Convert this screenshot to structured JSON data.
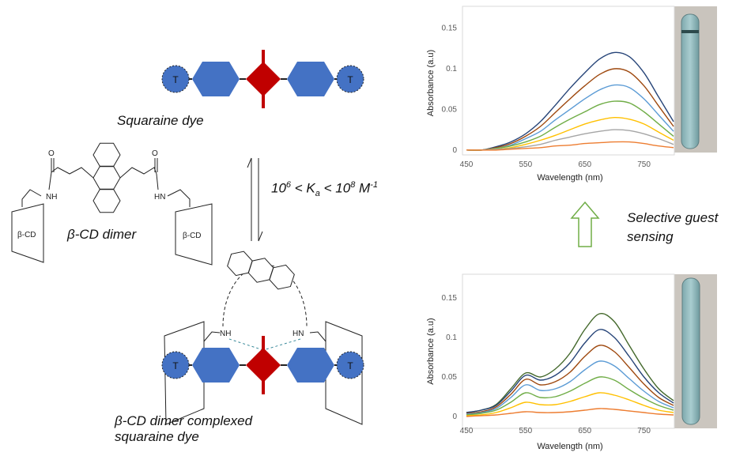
{
  "diagram": {
    "dye_label": "Squaraine dye",
    "terminal_label": "T",
    "dimer_label": "β-CD dimer",
    "cd_label": "β-CD",
    "oxygen_label": "O",
    "amide_nh_label": "NH",
    "amide_hn_label": "HN",
    "complex_label": [
      "β-CD dimer complexed",
      "squaraine dye"
    ],
    "binding_constant": [
      {
        "text": "10"
      },
      {
        "text": "6",
        "style": "sup"
      },
      {
        "text": " < K"
      },
      {
        "text": "a",
        "style": "sub"
      },
      {
        "text": " < 10"
      },
      {
        "text": "8",
        "style": "sup"
      },
      {
        "text": " M"
      },
      {
        "text": "-1",
        "style": "sup"
      }
    ],
    "arrow_label": [
      "Selective guest",
      "sensing"
    ]
  },
  "chart_data": [
    {
      "type": "line",
      "xlabel": "Wavelength (nm)",
      "ylabel": "Absorbance (a.u)",
      "x": [
        450,
        475,
        500,
        525,
        550,
        575,
        600,
        625,
        650,
        675,
        700,
        725,
        750,
        775,
        800
      ],
      "xlim": [
        450,
        800
      ],
      "xticks": [
        450,
        550,
        650,
        750
      ],
      "ylim": [
        -0.005,
        0.17
      ],
      "yticks": [
        0,
        0.05,
        0.1,
        0.15
      ],
      "series": [
        {
          "color": "#264478",
          "values": [
            0,
            0,
            0.004,
            0.01,
            0.02,
            0.035,
            0.055,
            0.076,
            0.095,
            0.112,
            0.12,
            0.115,
            0.095,
            0.065,
            0.035
          ]
        },
        {
          "color": "#9e480e",
          "values": [
            0,
            0,
            0.003,
            0.008,
            0.017,
            0.029,
            0.046,
            0.063,
            0.079,
            0.093,
            0.1,
            0.096,
            0.079,
            0.054,
            0.029
          ]
        },
        {
          "color": "#5b9bd5",
          "values": [
            0,
            0,
            0.002,
            0.006,
            0.014,
            0.023,
            0.037,
            0.05,
            0.063,
            0.074,
            0.08,
            0.077,
            0.063,
            0.043,
            0.023
          ]
        },
        {
          "color": "#70ad47",
          "values": [
            0,
            0,
            0.002,
            0.005,
            0.01,
            0.017,
            0.028,
            0.038,
            0.047,
            0.056,
            0.06,
            0.058,
            0.047,
            0.032,
            0.017
          ]
        },
        {
          "color": "#ffc000",
          "values": [
            0,
            0,
            0.001,
            0.003,
            0.007,
            0.012,
            0.018,
            0.025,
            0.032,
            0.037,
            0.04,
            0.038,
            0.032,
            0.022,
            0.012
          ]
        },
        {
          "color": "#a5a5a5",
          "values": [
            0,
            0,
            0.001,
            0.002,
            0.004,
            0.007,
            0.012,
            0.016,
            0.02,
            0.023,
            0.025,
            0.024,
            0.02,
            0.014,
            0.007
          ]
        },
        {
          "color": "#ed7d31",
          "values": [
            0,
            0,
            0,
            0.001,
            0.002,
            0.003,
            0.005,
            0.006,
            0.008,
            0.009,
            0.01,
            0.01,
            0.008,
            0.005,
            0.003
          ]
        }
      ]
    },
    {
      "type": "line",
      "xlabel": "Wavelength (nm)",
      "ylabel": "Absorbance (a.u)",
      "x": [
        450,
        475,
        500,
        525,
        550,
        575,
        600,
        625,
        650,
        675,
        700,
        725,
        750,
        775,
        800
      ],
      "xlim": [
        450,
        800
      ],
      "xticks": [
        450,
        550,
        650,
        750
      ],
      "ylim": [
        -0.005,
        0.17
      ],
      "yticks": [
        0,
        0.05,
        0.1,
        0.15
      ],
      "series": [
        {
          "color": "#43682b",
          "values": [
            0.005,
            0.008,
            0.015,
            0.035,
            0.055,
            0.05,
            0.06,
            0.08,
            0.11,
            0.13,
            0.12,
            0.09,
            0.06,
            0.035,
            0.02
          ]
        },
        {
          "color": "#264478",
          "values": [
            0.005,
            0.008,
            0.014,
            0.032,
            0.052,
            0.046,
            0.052,
            0.068,
            0.093,
            0.11,
            0.1,
            0.076,
            0.05,
            0.03,
            0.017
          ]
        },
        {
          "color": "#9e480e",
          "values": [
            0.004,
            0.006,
            0.012,
            0.028,
            0.047,
            0.04,
            0.044,
            0.056,
            0.076,
            0.09,
            0.082,
            0.062,
            0.041,
            0.024,
            0.014
          ]
        },
        {
          "color": "#5b9bd5",
          "values": [
            0.003,
            0.005,
            0.01,
            0.024,
            0.04,
            0.033,
            0.035,
            0.044,
            0.059,
            0.07,
            0.064,
            0.048,
            0.032,
            0.019,
            0.011
          ]
        },
        {
          "color": "#70ad47",
          "values": [
            0.002,
            0.004,
            0.008,
            0.018,
            0.03,
            0.024,
            0.025,
            0.032,
            0.042,
            0.05,
            0.046,
            0.034,
            0.023,
            0.014,
            0.008
          ]
        },
        {
          "color": "#ffc000",
          "values": [
            0.001,
            0.002,
            0.005,
            0.011,
            0.018,
            0.015,
            0.015,
            0.019,
            0.025,
            0.03,
            0.027,
            0.021,
            0.014,
            0.008,
            0.005
          ]
        },
        {
          "color": "#ed7d31",
          "values": [
            0,
            0.001,
            0.002,
            0.004,
            0.006,
            0.005,
            0.005,
            0.006,
            0.008,
            0.01,
            0.009,
            0.007,
            0.005,
            0.003,
            0.002
          ]
        }
      ]
    }
  ]
}
